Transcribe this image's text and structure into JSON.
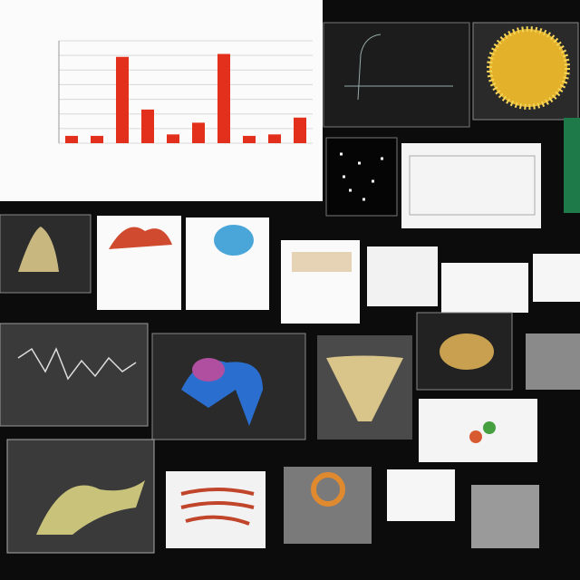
{
  "chart_data": {
    "type": "bar",
    "categories": [
      null,
      null,
      null,
      null,
      null,
      null,
      null,
      null,
      null,
      null
    ],
    "values": [
      0.5,
      0.5,
      5.9,
      2.3,
      0.6,
      1.4,
      6.1,
      0.5,
      0.6,
      1.75
    ],
    "color": "#e2301d",
    "ylim": [
      0,
      7
    ],
    "yticks": [
      0,
      1,
      2,
      3,
      4,
      5,
      6,
      7
    ],
    "grid": true
  }
}
